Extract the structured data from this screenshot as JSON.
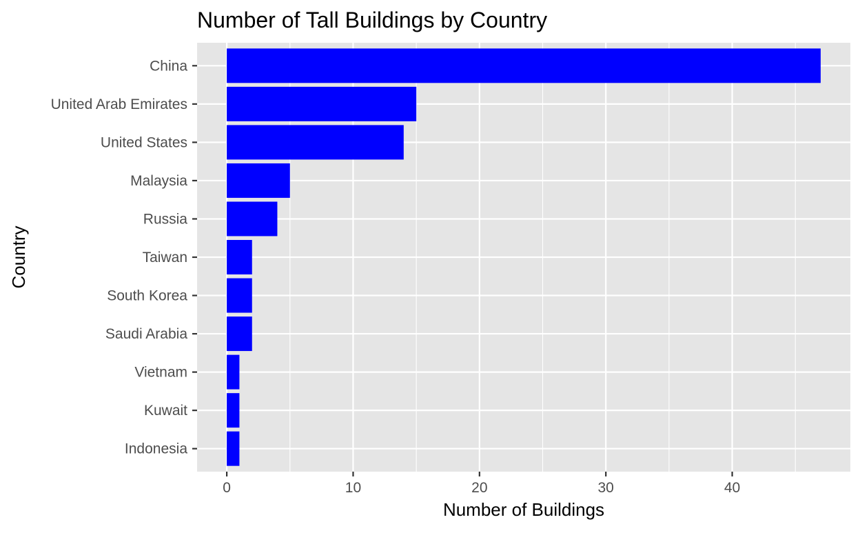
{
  "chart_data": {
    "type": "bar",
    "orientation": "horizontal",
    "title": "Number of Tall Buildings by Country",
    "xlabel": "Number of Buildings",
    "ylabel": "Country",
    "categories": [
      "China",
      "United Arab Emirates",
      "United States",
      "Malaysia",
      "Russia",
      "Taiwan",
      "South Korea",
      "Saudi Arabia",
      "Vietnam",
      "Kuwait",
      "Indonesia"
    ],
    "values": [
      47,
      15,
      14,
      5,
      4,
      2,
      2,
      2,
      1,
      1,
      1
    ],
    "xlim": [
      -2.35,
      49.35
    ],
    "xticks": [
      0,
      10,
      20,
      30,
      40
    ],
    "xtick_labels": [
      "0",
      "10",
      "20",
      "30",
      "40"
    ],
    "grid": true,
    "legend": "none",
    "colors": {
      "bar": "#0000ff",
      "panel_background": "#e5e5e5",
      "grid": "#ffffff",
      "tick_text": "#4d4d4d",
      "tick_mark": "#333333",
      "title_text": "#000000"
    }
  }
}
